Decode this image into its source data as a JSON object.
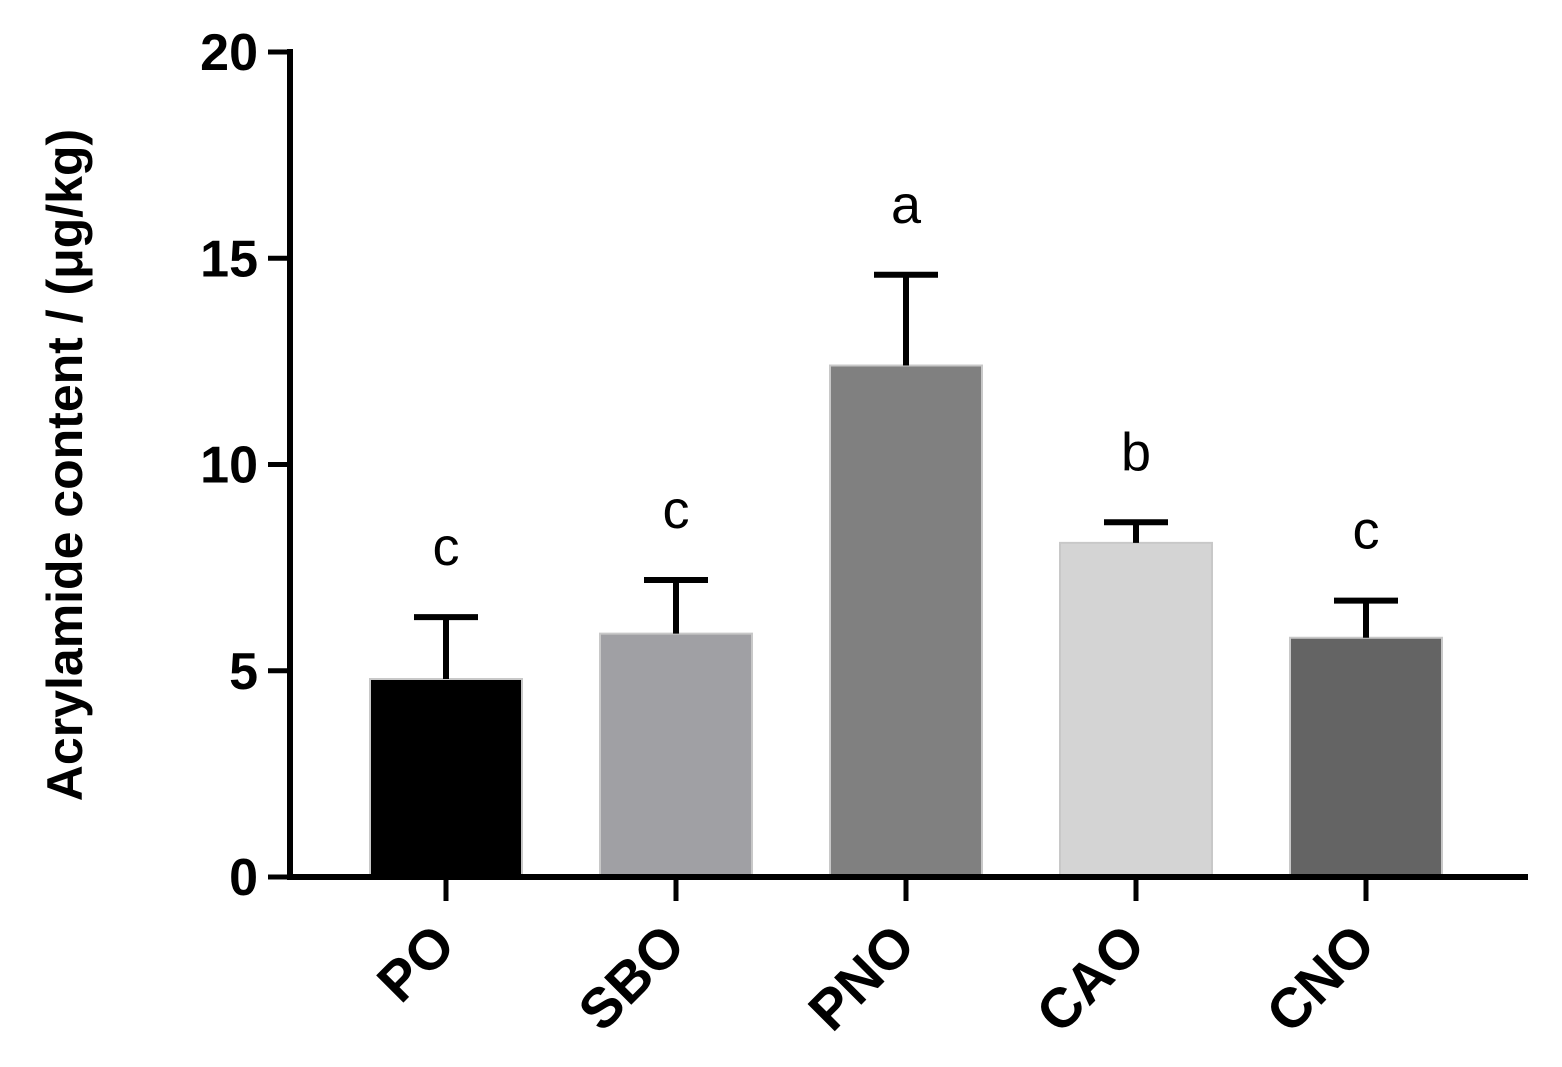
{
  "chart_data": {
    "type": "bar",
    "title": "",
    "xlabel": "",
    "ylabel": "Acrylamide content / (μg/kg)",
    "ylim": [
      0,
      20
    ],
    "yticks": [
      0,
      5,
      10,
      15,
      20
    ],
    "yticks_labels": [
      "0",
      "5",
      "10",
      "15",
      "20"
    ],
    "categories": [
      "PO",
      "SBO",
      "PNO",
      "CAO",
      "CNO"
    ],
    "values": [
      4.8,
      5.9,
      12.4,
      8.1,
      5.8
    ],
    "errors": [
      1.5,
      1.3,
      2.2,
      0.5,
      0.9
    ],
    "significance_letters": [
      "c",
      "c",
      "a",
      "b",
      "c"
    ],
    "colors": [
      "#000000",
      "#a0a0a4",
      "#808080",
      "#d4d4d4",
      "#646464"
    ],
    "grid": false,
    "legend": "none"
  }
}
